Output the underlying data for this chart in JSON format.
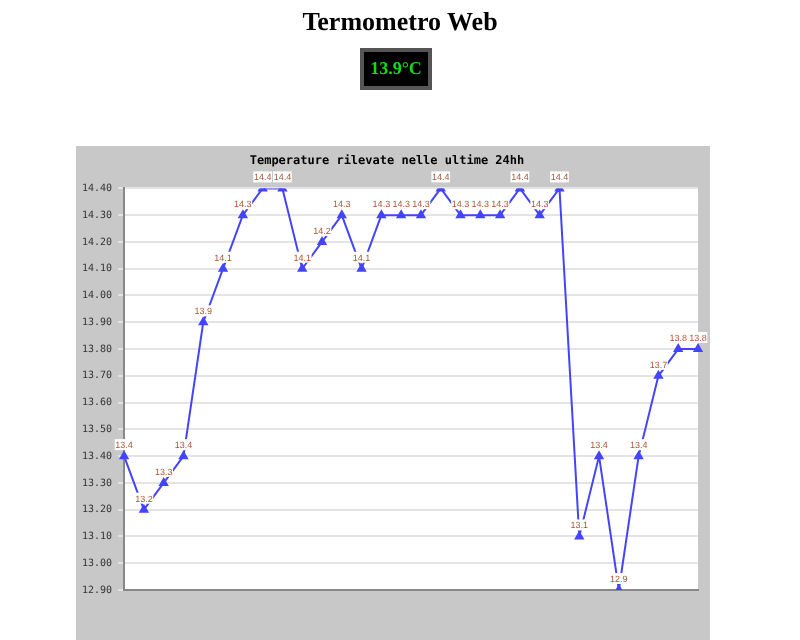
{
  "chart_data": {
    "type": "line",
    "title": "Termometro Web",
    "subtitle": "Temperature rilevate nelle ultime 24hh",
    "annotations": [
      "13.9°C"
    ],
    "categories": [
      null,
      null,
      null,
      null,
      null,
      null,
      null,
      null,
      null,
      null,
      null,
      null,
      null,
      null,
      null,
      null,
      null,
      null,
      null,
      null,
      null,
      null,
      null,
      null,
      null,
      null,
      null,
      null,
      null,
      null
    ],
    "series": [
      {
        "color": "#4444ff",
        "values": [
          13.4,
          13.2,
          13.3,
          13.4,
          13.9,
          14.1,
          14.3,
          14.4,
          14.4,
          14.1,
          14.2,
          14.3,
          14.1,
          14.3,
          14.3,
          14.3,
          14.4,
          14.3,
          14.3,
          14.3,
          14.4,
          14.3,
          14.4,
          13.1,
          13.4,
          12.9,
          13.4,
          13.7,
          13.8,
          13.8
        ]
      }
    ],
    "ylim": [
      12.9,
      14.4
    ],
    "yticks": [
      {
        "value": 12.9,
        "label": "12.90"
      },
      {
        "value": 13.0,
        "label": "13.00"
      },
      {
        "value": 13.1,
        "label": "13.10"
      },
      {
        "value": 13.2,
        "label": "13.20"
      },
      {
        "value": 13.3,
        "label": "13.30"
      },
      {
        "value": 13.4,
        "label": "13.40"
      },
      {
        "value": 13.5,
        "label": "13.50"
      },
      {
        "value": 13.6,
        "label": "13.60"
      },
      {
        "value": 13.7,
        "label": "13.70"
      },
      {
        "value": 13.8,
        "label": "13.80"
      },
      {
        "value": 13.9,
        "label": "13.90"
      },
      {
        "value": 14.0,
        "label": "14.00"
      },
      {
        "value": 14.1,
        "label": "14.10"
      },
      {
        "value": 14.2,
        "label": "14.20"
      },
      {
        "value": 14.3,
        "label": "14.30"
      },
      {
        "value": 14.4,
        "label": "14.40"
      }
    ],
    "grid": "y",
    "legend": false,
    "marker": "triangle",
    "line_style": "solid",
    "data_labels": true
  }
}
